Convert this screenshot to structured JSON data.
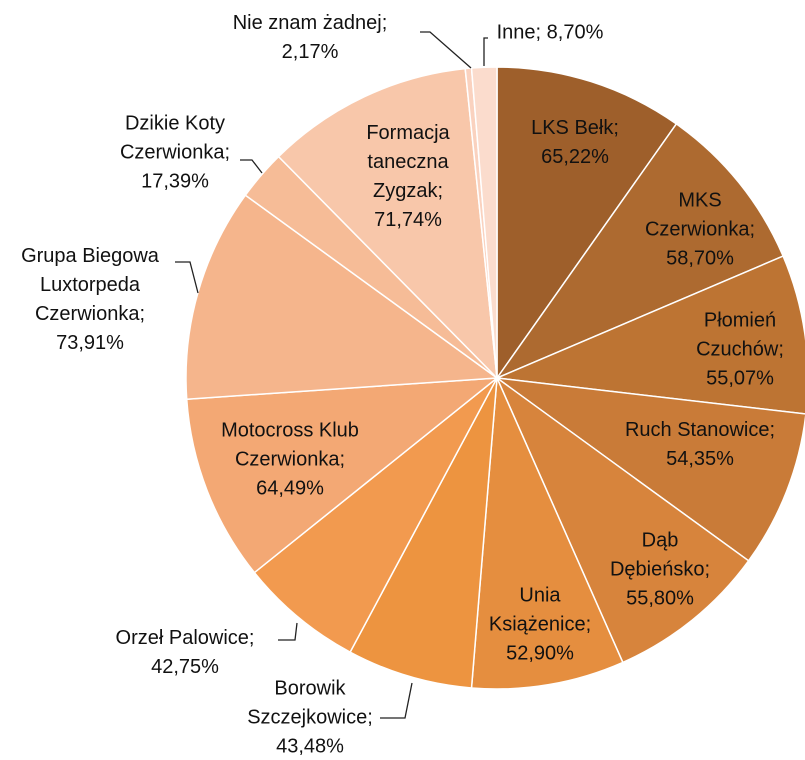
{
  "chart_data": {
    "type": "pie",
    "categories": [
      "LKS Bełk;",
      "MKS Czerwionka;",
      "Płomień Czuchów;",
      "Ruch Stanowice;",
      "Dąb Dębieńsko;",
      "Unia Książenice;",
      "Borowik Szczejkowice;",
      "Orzeł Palowice;",
      "Motocross Klub Czerwionka;",
      "Grupa Biegowa Luxtorpeda Czerwionka;",
      "Dzikie Koty Czerwionka;",
      "Formacja taneczna Zygzak;",
      "Nie znam żadnej;",
      "Inne;"
    ],
    "values": [
      65.22,
      58.7,
      55.07,
      54.35,
      55.8,
      52.9,
      43.48,
      42.75,
      64.49,
      73.91,
      17.39,
      71.74,
      2.17,
      8.7
    ],
    "value_labels": [
      "65,22%",
      "58,70%",
      "55,07%",
      "54,35%",
      "55,80%",
      "52,90%",
      "43,48%",
      "42,75%",
      "64,49%",
      "73,91%",
      "17,39%",
      "71,74%",
      "2,17%",
      "8,70%"
    ],
    "colors": [
      "#9e5f2b",
      "#ad6a30",
      "#bd7433",
      "#c97b38",
      "#d7843c",
      "#e58e3f",
      "#ed9440",
      "#f29a4f",
      "#f3a874",
      "#f5b58c",
      "#f6bc97",
      "#f8c7aa",
      "#fad2bf",
      "#fbdccd"
    ]
  }
}
